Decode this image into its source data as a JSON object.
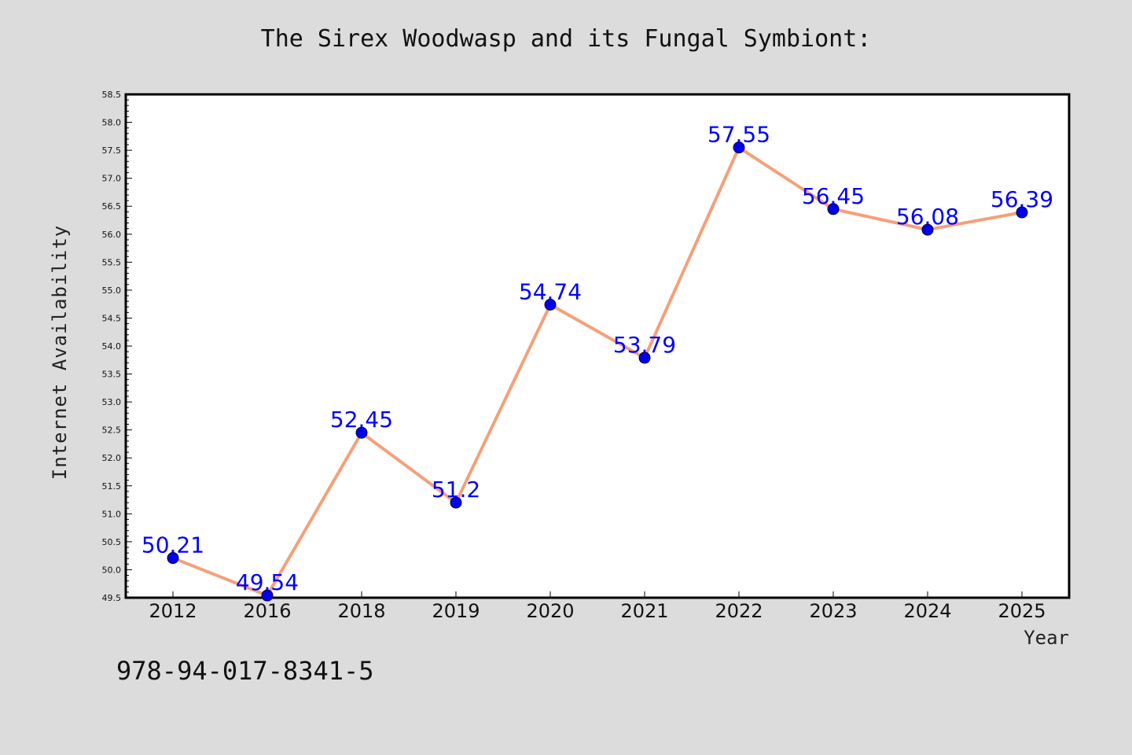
{
  "chart_data": {
    "type": "line",
    "title": "The Sirex Woodwasp and its Fungal Symbiont:",
    "xlabel": "Year",
    "ylabel": "Internet Availability",
    "categories": [
      "2012",
      "2016",
      "2018",
      "2019",
      "2020",
      "2021",
      "2022",
      "2023",
      "2024",
      "2025"
    ],
    "series": [
      {
        "values": [
          50.21,
          49.54,
          52.45,
          51.2,
          54.74,
          53.79,
          57.55,
          56.45,
          56.08,
          56.39
        ]
      }
    ],
    "data_labels": [
      "50.21",
      "49.54",
      "52.45",
      "51.2",
      "54.74",
      "53.79",
      "57.55",
      "56.45",
      "56.08",
      "56.39"
    ],
    "ylim": [
      49.5,
      58.5
    ],
    "yticks": [
      "49.5",
      "50.0",
      "50.5",
      "51.0",
      "51.5",
      "52.0",
      "52.5",
      "53.0",
      "53.5",
      "54.0",
      "54.5",
      "55.0",
      "55.5",
      "56.0",
      "56.5",
      "57.0",
      "57.5",
      "58.0",
      "58.5"
    ],
    "grid": false,
    "line_color": "#f4a07a",
    "marker_color": "#0000ee",
    "label_color": "#0000ff",
    "plot_background": "#ffffff",
    "figure_background": "#dcdcdc"
  },
  "footer_text": "978-94-017-8341-5"
}
